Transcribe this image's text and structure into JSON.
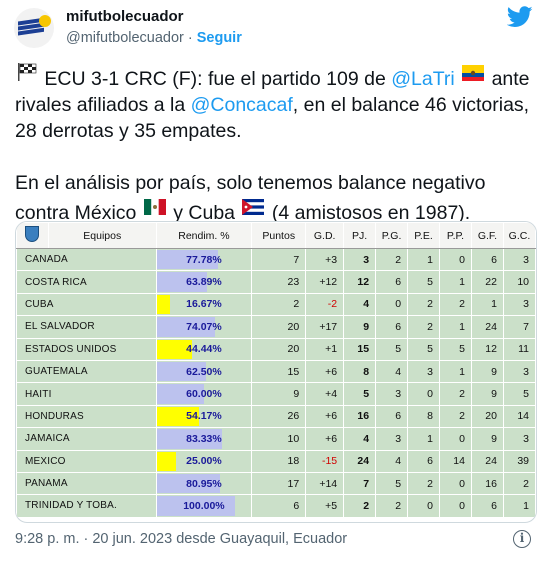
{
  "account": {
    "display_name": "mifutbolecuador",
    "handle": "@mifutbolecuador",
    "separator": "·",
    "follow_label": "Seguir"
  },
  "tweet": {
    "p1_a": " ECU 3-1 CRC (F): fue el partido 109 de ",
    "p1_link1": "@LaTri",
    "p1_b": " ante rivales afiliados a la ",
    "p1_link2": "@Concacaf",
    "p1_c": ", en el balance 46 victorias, 28 derrotas y 35 empates.",
    "p2_a": "En el análisis por país, solo tenemos balance negativo contra México ",
    "p2_b": " y Cuba ",
    "p2_c": " (4 amistosos en 1987)."
  },
  "table": {
    "headers": [
      "Equipos",
      "Rendim. %",
      "Puntos",
      "G.D.",
      "PJ.",
      "P.G.",
      "P.E.",
      "P.P.",
      "G.F.",
      "G.C."
    ],
    "rows": [
      {
        "team": "CANADA",
        "rend": "77.78%",
        "pct": 77.78,
        "pts": "7",
        "gd": "+3",
        "pj": "3",
        "pg": "2",
        "pe": "1",
        "pp": "0",
        "gf": "6",
        "gc": "3"
      },
      {
        "team": "COSTA RICA",
        "rend": "63.89%",
        "pct": 63.89,
        "pts": "23",
        "gd": "+12",
        "pj": "12",
        "pg": "6",
        "pe": "5",
        "pp": "1",
        "gf": "22",
        "gc": "10"
      },
      {
        "team": "CUBA",
        "rend": "16.67%",
        "pct": 16.67,
        "pts": "2",
        "gd": "-2",
        "pj": "4",
        "pg": "0",
        "pe": "2",
        "pp": "2",
        "gf": "1",
        "gc": "3"
      },
      {
        "team": "EL SALVADOR",
        "rend": "74.07%",
        "pct": 74.07,
        "pts": "20",
        "gd": "+17",
        "pj": "9",
        "pg": "6",
        "pe": "2",
        "pp": "1",
        "gf": "24",
        "gc": "7"
      },
      {
        "team": "ESTADOS UNIDOS",
        "rend": "44.44%",
        "pct": 44.44,
        "pts": "20",
        "gd": "+1",
        "pj": "15",
        "pg": "5",
        "pe": "5",
        "pp": "5",
        "gf": "12",
        "gc": "11"
      },
      {
        "team": "GUATEMALA",
        "rend": "62.50%",
        "pct": 62.5,
        "pts": "15",
        "gd": "+6",
        "pj": "8",
        "pg": "4",
        "pe": "3",
        "pp": "1",
        "gf": "9",
        "gc": "3"
      },
      {
        "team": "HAITI",
        "rend": "60.00%",
        "pct": 60.0,
        "pts": "9",
        "gd": "+4",
        "pj": "5",
        "pg": "3",
        "pe": "0",
        "pp": "2",
        "gf": "9",
        "gc": "5"
      },
      {
        "team": "HONDURAS",
        "rend": "54.17%",
        "pct": 54.17,
        "pts": "26",
        "gd": "+6",
        "pj": "16",
        "pg": "6",
        "pe": "8",
        "pp": "2",
        "gf": "20",
        "gc": "14"
      },
      {
        "team": "JAMAICA",
        "rend": "83.33%",
        "pct": 83.33,
        "pts": "10",
        "gd": "+6",
        "pj": "4",
        "pg": "3",
        "pe": "1",
        "pp": "0",
        "gf": "9",
        "gc": "3"
      },
      {
        "team": "MEXICO",
        "rend": "25.00%",
        "pct": 25.0,
        "pts": "18",
        "gd": "-15",
        "pj": "24",
        "pg": "4",
        "pe": "6",
        "pp": "14",
        "gf": "24",
        "gc": "39"
      },
      {
        "team": "PANAMA",
        "rend": "80.95%",
        "pct": 80.95,
        "pts": "17",
        "gd": "+14",
        "pj": "7",
        "pg": "5",
        "pe": "2",
        "pp": "0",
        "gf": "16",
        "gc": "2"
      },
      {
        "team": "TRINIDAD Y TOBA.",
        "rend": "100.00%",
        "pct": 100.0,
        "pts": "6",
        "gd": "+5",
        "pj": "2",
        "pg": "2",
        "pe": "0",
        "pp": "0",
        "gf": "6",
        "gc": "1"
      }
    ]
  },
  "footer": {
    "timestamp": "9:28 p. m. · 20 jun. 2023 desde Guayaquil, Ecuador"
  },
  "colors": {
    "link": "#1d9bf0",
    "row_bg": "#cbe0c9",
    "low_bar": "#ffff00",
    "high_bar": "#bcc2ee",
    "negative": "#d00000"
  },
  "icons": [
    "twitter-bird-icon",
    "checkered-flag-icon",
    "ecuador-flag-icon",
    "mexico-flag-icon",
    "cuba-flag-icon",
    "info-icon"
  ]
}
